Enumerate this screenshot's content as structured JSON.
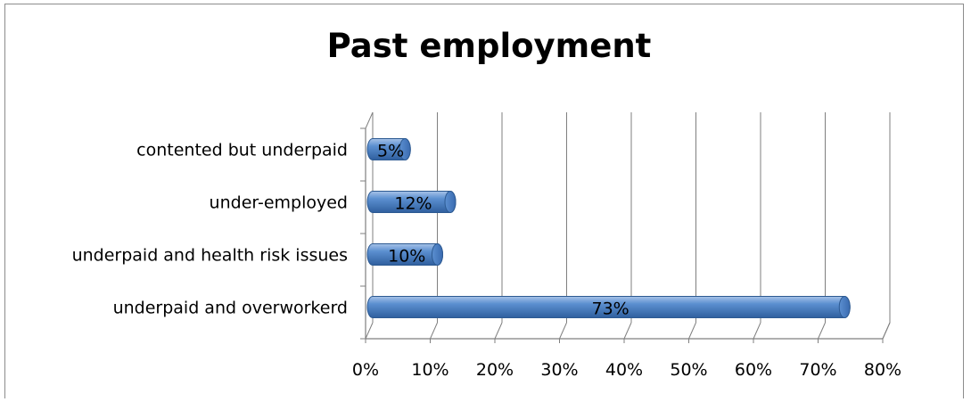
{
  "chart_data": {
    "type": "bar",
    "orientation": "horizontal",
    "title": "Past employment",
    "categories": [
      "contented but underpaid",
      "under-employed",
      "underpaid and health risk issues",
      "underpaid and overworkerd"
    ],
    "values": [
      5,
      12,
      10,
      73
    ],
    "data_labels": [
      "5%",
      "12%",
      "10%",
      "73%"
    ],
    "xlim": [
      0,
      80
    ],
    "x_ticks": [
      0,
      10,
      20,
      30,
      40,
      50,
      60,
      70,
      80
    ],
    "x_tick_labels": [
      "0%",
      "10%",
      "20%",
      "30%",
      "40%",
      "50%",
      "60%",
      "70%",
      "80%"
    ],
    "xlabel": "",
    "ylabel": "",
    "grid": true,
    "legend": "none",
    "bar_color": "#4f81bd",
    "style": "3d-cylinder"
  }
}
